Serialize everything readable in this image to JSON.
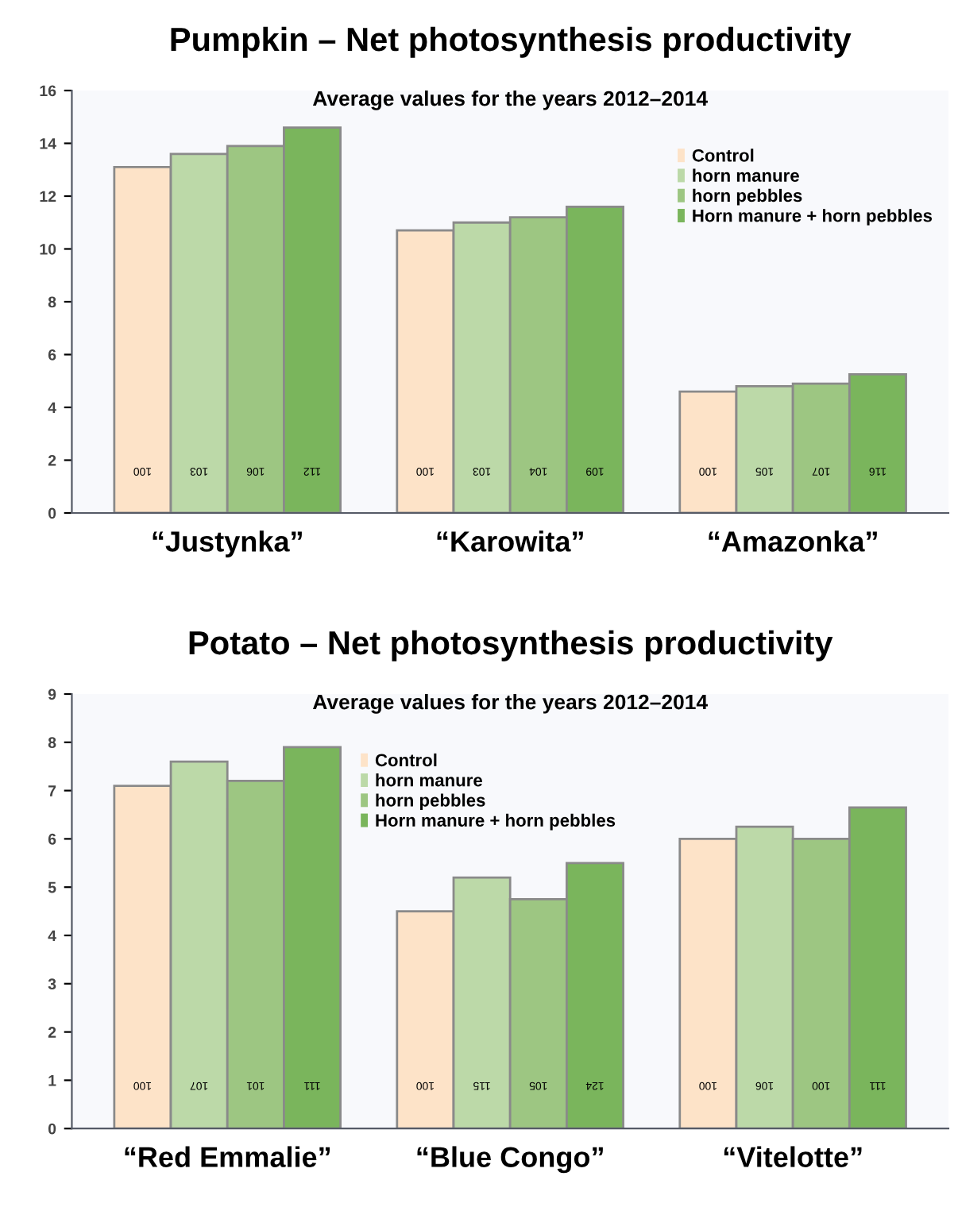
{
  "chart_data": [
    {
      "type": "bar",
      "title": "Pumpkin – Net photosynthesis productivity",
      "subtitle": "Average values for the years 2012–2014",
      "categories": [
        "“Justynka”",
        "“Karowita”",
        "“Amazonka”"
      ],
      "ylim": [
        0,
        16
      ],
      "yticks": [
        0,
        2,
        4,
        6,
        8,
        10,
        12,
        14,
        16
      ],
      "grid": false,
      "legend": "top right",
      "annotations": [
        "100",
        "100",
        "100",
        "103",
        "103",
        "105",
        "106",
        "104",
        "107",
        "112",
        "109",
        "116"
      ],
      "series": [
        {
          "name": "Control",
          "color": "#fde3c8",
          "values": [
            13.1,
            10.7,
            4.6
          ]
        },
        {
          "name": "horn manure",
          "color": "#bcd9a8",
          "values": [
            13.6,
            11.0,
            4.8
          ]
        },
        {
          "name": "horn pebbles",
          "color": "#9dc682",
          "values": [
            13.9,
            11.2,
            4.9
          ]
        },
        {
          "name": "Horn manure + horn pebbles",
          "color": "#7ab55c",
          "values": [
            14.6,
            11.6,
            5.25
          ]
        }
      ]
    },
    {
      "type": "bar",
      "title": "Potato – Net photosynthesis productivity",
      "subtitle": "Average values for the years 2012–2014",
      "categories": [
        "“Red Emmalie”",
        "“Blue Congo”",
        "“Vitelotte”"
      ],
      "ylim": [
        0,
        9
      ],
      "yticks": [
        0,
        1,
        2,
        3,
        4,
        5,
        6,
        7,
        8,
        9
      ],
      "grid": false,
      "legend": "top",
      "annotations": [
        "100",
        "100",
        "100",
        "107",
        "115",
        "106",
        "101",
        "105",
        "100",
        "111",
        "124",
        "111"
      ],
      "series": [
        {
          "name": "Control",
          "color": "#fde3c8",
          "values": [
            7.1,
            4.5,
            6.0
          ]
        },
        {
          "name": "horn manure",
          "color": "#bcd9a8",
          "values": [
            7.6,
            5.2,
            6.25
          ]
        },
        {
          "name": "horn pebbles",
          "color": "#9dc682",
          "values": [
            7.2,
            4.75,
            6.0
          ]
        },
        {
          "name": "Horn manure + horn pebbles",
          "color": "#7ab55c",
          "values": [
            7.9,
            5.5,
            6.65
          ]
        }
      ]
    }
  ]
}
